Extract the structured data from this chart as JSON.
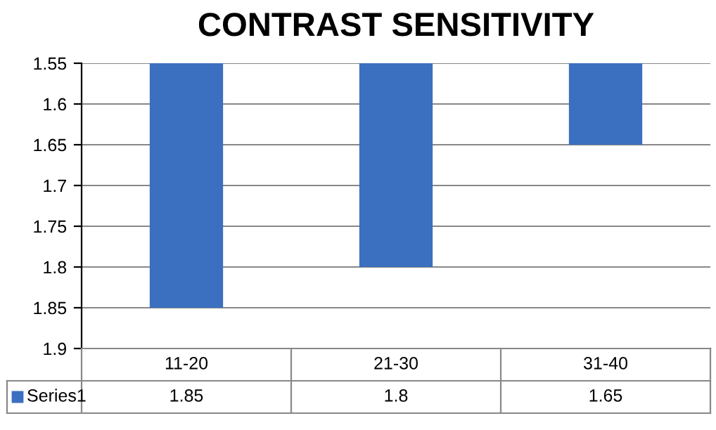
{
  "chart_data": {
    "type": "bar",
    "title": "CONTRAST SENSITIVITY",
    "categories": [
      "11-20",
      "21-30",
      "31-40"
    ],
    "series": [
      {
        "name": "Series1",
        "color": "#3b6fbf",
        "values": [
          1.85,
          1.8,
          1.65
        ]
      }
    ],
    "ylim": [
      1.9,
      1.55
    ],
    "yticks": [
      1.55,
      1.6,
      1.65,
      1.7,
      1.75,
      1.8,
      1.85,
      1.9
    ],
    "grid": "y",
    "data_labels": true
  }
}
